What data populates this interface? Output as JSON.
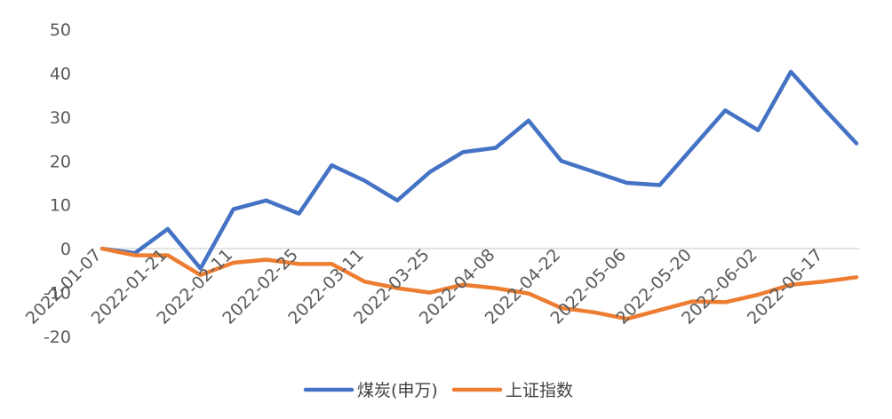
{
  "chart_data": {
    "type": "line",
    "title": "",
    "xlabel": "",
    "ylabel": "",
    "ylim": [
      -20,
      50
    ],
    "yticks": [
      50,
      40,
      30,
      20,
      10,
      0,
      -10,
      -20
    ],
    "xtick_labels": [
      "2022-01-07",
      "2022-01-21",
      "2022-02-11",
      "2022-02-25",
      "2022-03-11",
      "2022-03-25",
      "2022-04-08",
      "2022-04-22",
      "2022-05-06",
      "2022-05-20",
      "2022-06-02",
      "2022-06-17"
    ],
    "x": [
      "2022-01-07",
      "2022-01-14",
      "2022-01-21",
      "2022-01-28",
      "2022-02-11",
      "2022-02-18",
      "2022-02-25",
      "2022-03-04",
      "2022-03-11",
      "2022-03-18",
      "2022-03-25",
      "2022-04-01",
      "2022-04-08",
      "2022-04-15",
      "2022-04-22",
      "2022-04-29",
      "2022-05-06",
      "2022-05-13",
      "2022-05-20",
      "2022-05-27",
      "2022-06-02",
      "2022-06-10",
      "2022-06-17",
      "2022-06-24"
    ],
    "grid": false,
    "legend_position": "bottom",
    "series": [
      {
        "name": "煤炭(申万)",
        "color": "#4472C4",
        "values": [
          0,
          -1,
          4.5,
          -4.5,
          9,
          11,
          8,
          19,
          15.5,
          11,
          17.5,
          22,
          23,
          29.2,
          20,
          17.5,
          15,
          14.5,
          23,
          31.5,
          27,
          40.3,
          32,
          24
        ]
      },
      {
        "name": "上证指数",
        "color": "#ED7D31",
        "values": [
          0,
          -1.5,
          -1.5,
          -6,
          -3.2,
          -2.5,
          -3.5,
          -3.5,
          -7.5,
          -9,
          -10,
          -8.2,
          -9,
          -10.2,
          -13.5,
          -14.5,
          -16,
          -14,
          -12,
          -12.2,
          -10.5,
          -8.2,
          -7.5,
          -6.5
        ]
      }
    ]
  }
}
